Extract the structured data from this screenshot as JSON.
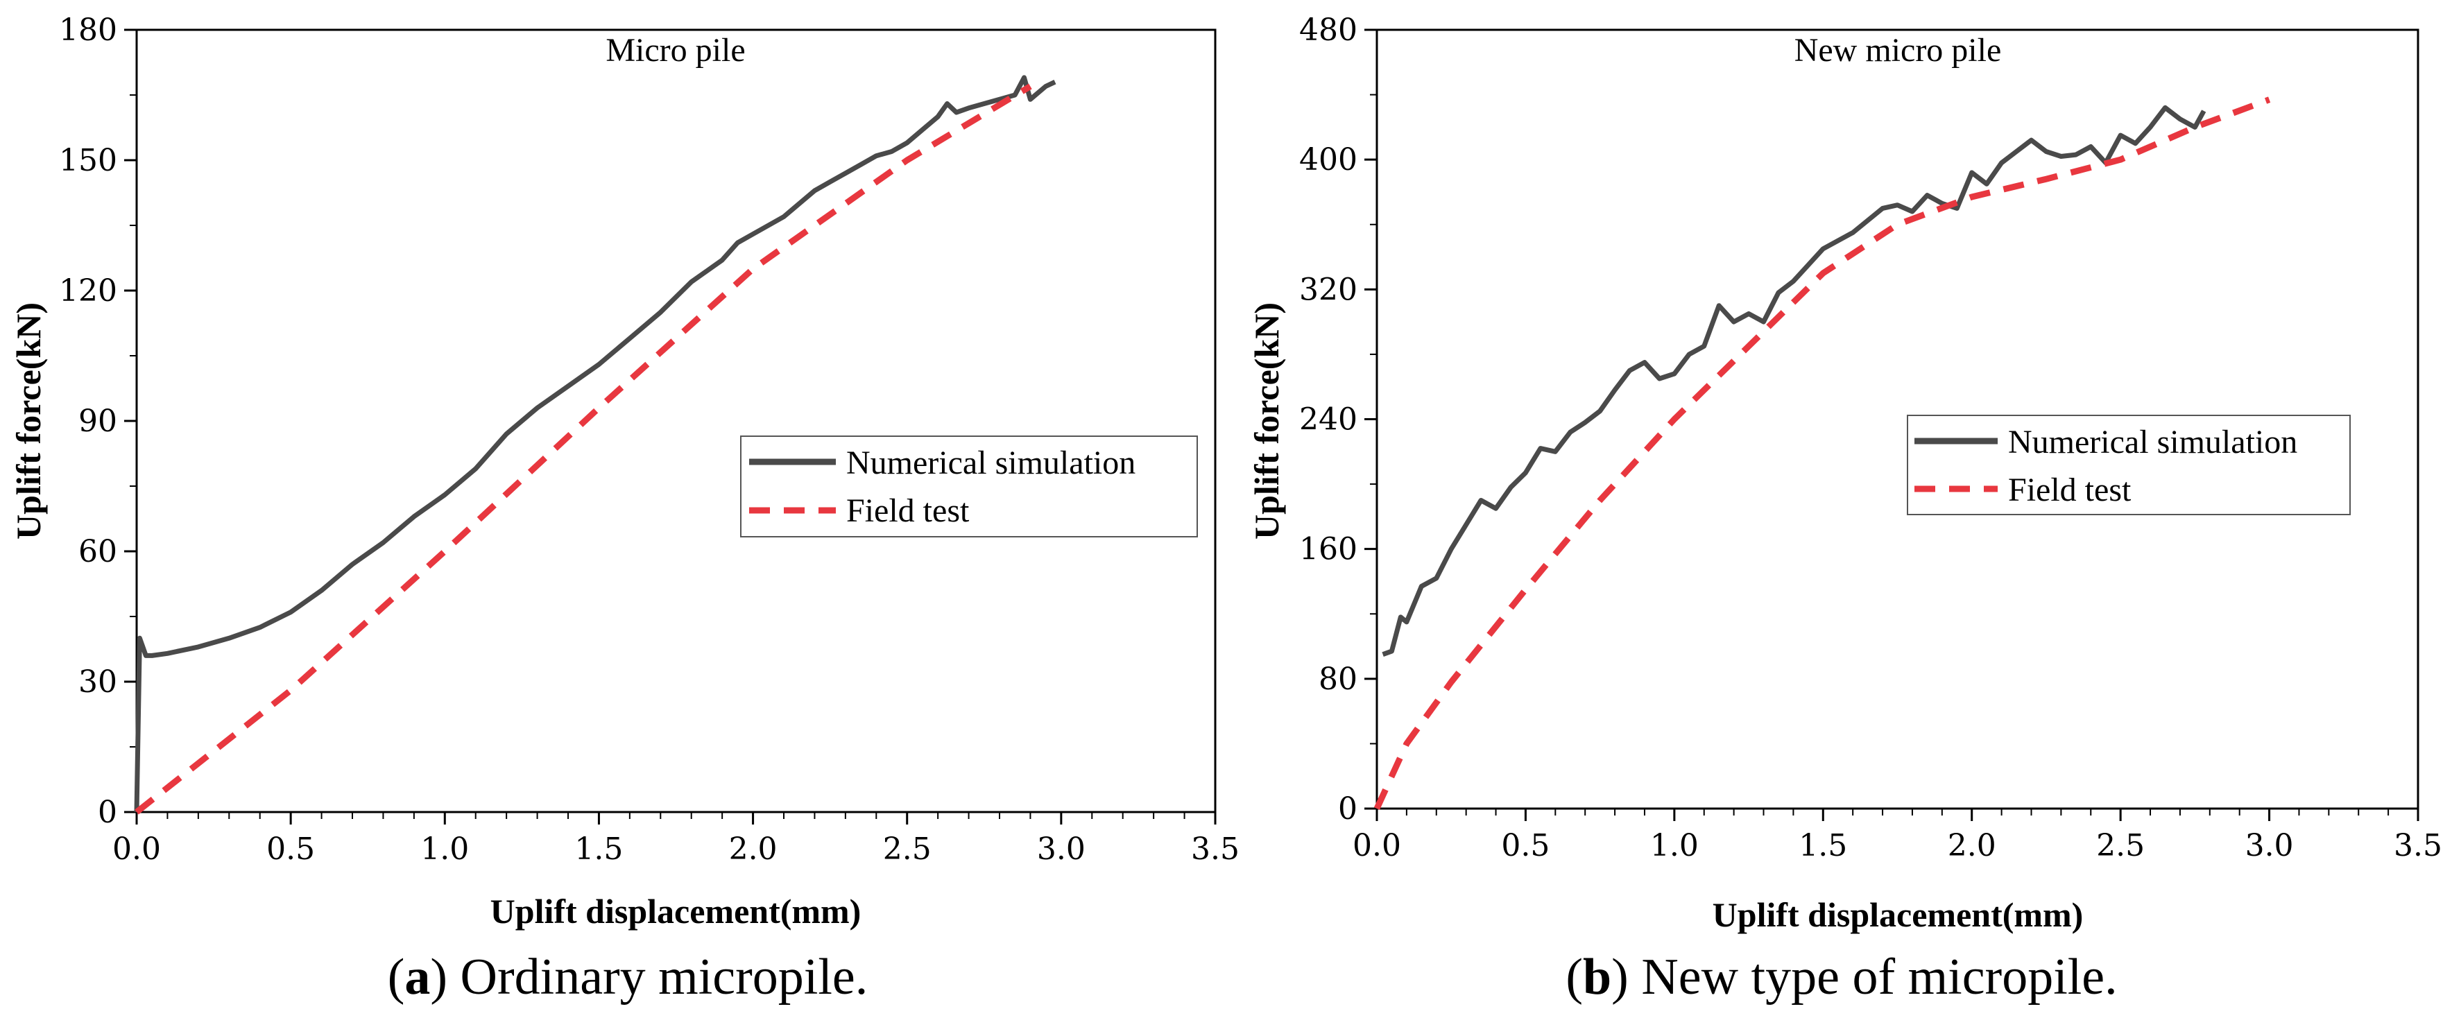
{
  "chart_data": [
    {
      "type": "line",
      "title": "Micro pile",
      "xlabel": "Uplift displacement(mm)",
      "ylabel": "Uplift force(kN)",
      "xlim": [
        0.0,
        3.5
      ],
      "ylim": [
        0,
        180
      ],
      "xticks": [
        0.0,
        0.5,
        1.0,
        1.5,
        2.0,
        2.5,
        3.0,
        3.5
      ],
      "yticks": [
        0,
        30,
        60,
        90,
        120,
        150,
        180
      ],
      "xtick_labels": [
        "0.0",
        "0.5",
        "1.0",
        "1.5",
        "2.0",
        "2.5",
        "3.0",
        "3.5"
      ],
      "ytick_labels": [
        "0",
        "30",
        "60",
        "90",
        "120",
        "150",
        "180"
      ],
      "legend_position": "center-right",
      "caption_letter": "a",
      "caption_text": "Ordinary micropile.",
      "series": [
        {
          "name": "Numerical simulation",
          "color": "#4a4a4a",
          "style": "solid",
          "x": [
            0.0,
            0.01,
            0.02,
            0.03,
            0.05,
            0.1,
            0.2,
            0.3,
            0.4,
            0.5,
            0.6,
            0.7,
            0.8,
            0.9,
            1.0,
            1.1,
            1.2,
            1.3,
            1.4,
            1.5,
            1.6,
            1.7,
            1.8,
            1.9,
            1.95,
            2.0,
            2.05,
            2.1,
            2.15,
            2.2,
            2.25,
            2.3,
            2.35,
            2.4,
            2.45,
            2.5,
            2.55,
            2.6,
            2.63,
            2.66,
            2.7,
            2.75,
            2.8,
            2.85,
            2.88,
            2.9,
            2.95,
            2.98
          ],
          "y": [
            0,
            40,
            38,
            36,
            36,
            36.5,
            38,
            40,
            42.5,
            46,
            51,
            57,
            62,
            68,
            73,
            79,
            87,
            93,
            98,
            103,
            109,
            115,
            122,
            127,
            131,
            133,
            135,
            137,
            140,
            143,
            145,
            147,
            149,
            151,
            152,
            154,
            157,
            160,
            163,
            161,
            162,
            163,
            164,
            165,
            169,
            164,
            167,
            168
          ]
        },
        {
          "name": "Field test",
          "color": "#e8373f",
          "style": "dashed",
          "x": [
            0.0,
            0.5,
            1.0,
            1.5,
            2.0,
            2.5,
            2.9
          ],
          "y": [
            0,
            28,
            60,
            93,
            125,
            150,
            167
          ]
        }
      ]
    },
    {
      "type": "line",
      "title": "New micro pile",
      "xlabel": "Uplift displacement(mm)",
      "ylabel": "Uplift force(kN)",
      "xlim": [
        0.0,
        3.5
      ],
      "ylim": [
        0,
        480
      ],
      "xticks": [
        0.0,
        0.5,
        1.0,
        1.5,
        2.0,
        2.5,
        3.0,
        3.5
      ],
      "yticks": [
        0,
        80,
        160,
        240,
        320,
        400,
        480
      ],
      "xtick_labels": [
        "0.0",
        "0.5",
        "1.0",
        "1.5",
        "2.0",
        "2.5",
        "3.0",
        "3.5"
      ],
      "ytick_labels": [
        "0",
        "80",
        "160",
        "240",
        "320",
        "400",
        "480"
      ],
      "legend_position": "center-right",
      "caption_letter": "b",
      "caption_text": "New type of micropile.",
      "series": [
        {
          "name": "Numerical simulation",
          "color": "#4a4a4a",
          "style": "solid",
          "x": [
            0.02,
            0.05,
            0.08,
            0.1,
            0.15,
            0.2,
            0.25,
            0.3,
            0.35,
            0.4,
            0.45,
            0.5,
            0.55,
            0.6,
            0.65,
            0.7,
            0.75,
            0.8,
            0.85,
            0.9,
            0.95,
            1.0,
            1.05,
            1.1,
            1.15,
            1.2,
            1.25,
            1.3,
            1.35,
            1.4,
            1.5,
            1.6,
            1.7,
            1.75,
            1.8,
            1.85,
            1.9,
            1.95,
            2.0,
            2.05,
            2.1,
            2.15,
            2.2,
            2.25,
            2.3,
            2.35,
            2.4,
            2.45,
            2.5,
            2.55,
            2.6,
            2.65,
            2.7,
            2.75,
            2.78
          ],
          "y": [
            95,
            97,
            118,
            115,
            137,
            142,
            160,
            175,
            190,
            185,
            198,
            207,
            222,
            220,
            232,
            238,
            245,
            258,
            270,
            275,
            265,
            268,
            280,
            285,
            310,
            300,
            305,
            300,
            318,
            325,
            345,
            355,
            370,
            372,
            368,
            378,
            373,
            370,
            392,
            385,
            398,
            405,
            412,
            405,
            402,
            403,
            408,
            398,
            415,
            410,
            420,
            432,
            425,
            420,
            430
          ]
        },
        {
          "name": "Field test",
          "color": "#e8373f",
          "style": "dashed",
          "x": [
            0.0,
            0.1,
            0.25,
            0.5,
            0.75,
            1.0,
            1.25,
            1.5,
            1.75,
            2.0,
            2.25,
            2.5,
            2.75,
            3.0
          ],
          "y": [
            0,
            40,
            78,
            135,
            190,
            240,
            285,
            330,
            360,
            377,
            388,
            400,
            420,
            437
          ]
        }
      ]
    }
  ]
}
